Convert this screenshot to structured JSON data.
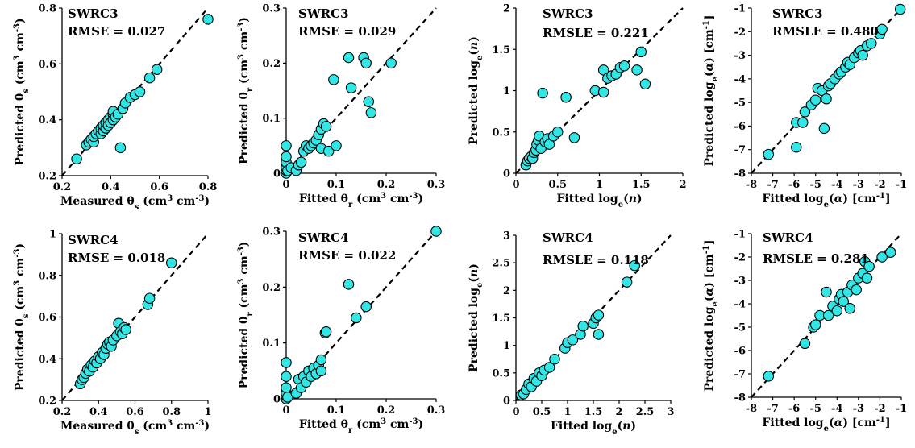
{
  "chart_data": [
    {
      "type": "scatter",
      "title": "SWRC3",
      "annotation": "RMSE = 0.027",
      "xlabel_html": "Measured θ<tspan baseline-shift='sub' font-size='10'>s</tspan> (cm<tspan baseline-shift='super' font-size='10'>3</tspan> cm<tspan baseline-shift='super' font-size='10'>-3</tspan>)",
      "ylabel_html": "Predicted θ<tspan baseline-shift='sub' font-size='10'>s</tspan> (cm<tspan baseline-shift='super' font-size='10'>3</tspan> cm<tspan baseline-shift='super' font-size='10'>-3</tspan>)",
      "xlim": [
        0.2,
        0.8
      ],
      "ylim": [
        0.2,
        0.8
      ],
      "xticks": [
        0.2,
        0.4,
        0.6,
        0.8
      ],
      "yticks": [
        0.2,
        0.4,
        0.6,
        0.8
      ],
      "tick_labels_x": [
        "0.2",
        "0.4",
        "0.6",
        "0.8"
      ],
      "tick_labels_y": [
        "0.2",
        "0.4",
        "0.6",
        "0.8"
      ],
      "reference_line": "1:1 dashed",
      "points": [
        [
          0.26,
          0.26
        ],
        [
          0.3,
          0.31
        ],
        [
          0.31,
          0.32
        ],
        [
          0.32,
          0.33
        ],
        [
          0.33,
          0.32
        ],
        [
          0.33,
          0.34
        ],
        [
          0.34,
          0.35
        ],
        [
          0.35,
          0.36
        ],
        [
          0.36,
          0.35
        ],
        [
          0.36,
          0.37
        ],
        [
          0.37,
          0.36
        ],
        [
          0.37,
          0.38
        ],
        [
          0.38,
          0.37
        ],
        [
          0.38,
          0.39
        ],
        [
          0.39,
          0.4
        ],
        [
          0.39,
          0.38
        ],
        [
          0.4,
          0.41
        ],
        [
          0.4,
          0.39
        ],
        [
          0.41,
          0.42
        ],
        [
          0.41,
          0.4
        ],
        [
          0.41,
          0.43
        ],
        [
          0.42,
          0.41
        ],
        [
          0.43,
          0.42
        ],
        [
          0.44,
          0.3
        ],
        [
          0.45,
          0.44
        ],
        [
          0.46,
          0.46
        ],
        [
          0.48,
          0.48
        ],
        [
          0.5,
          0.49
        ],
        [
          0.52,
          0.5
        ],
        [
          0.56,
          0.55
        ],
        [
          0.59,
          0.58
        ],
        [
          0.8,
          0.76
        ]
      ]
    },
    {
      "type": "scatter",
      "title": "SWRC3",
      "annotation": "RMSE = 0.029",
      "xlabel_html": "Fitted θ<tspan baseline-shift='sub' font-size='10'>r</tspan> (cm<tspan baseline-shift='super' font-size='10'>3</tspan> cm<tspan baseline-shift='super' font-size='10'>-3</tspan>)",
      "ylabel_html": "Predicted θ<tspan baseline-shift='sub' font-size='10'>r</tspan> (cm<tspan baseline-shift='super' font-size='10'>3</tspan> cm<tspan baseline-shift='super' font-size='10'>-3</tspan>)",
      "xlim": [
        0,
        0.3
      ],
      "ylim": [
        0,
        0.3
      ],
      "xticks": [
        0,
        0.1,
        0.2,
        0.3
      ],
      "yticks": [
        0,
        0.1,
        0.2,
        0.3
      ],
      "tick_labels_x": [
        "0",
        "0.1",
        "0.2",
        "0.3"
      ],
      "tick_labels_y": [
        "0",
        "0.1",
        "0.2",
        "0.3"
      ],
      "reference_line": "1:1 dashed",
      "points": [
        [
          0,
          0
        ],
        [
          0,
          0.005
        ],
        [
          0,
          0.01
        ],
        [
          0,
          0.02
        ],
        [
          0,
          0.03
        ],
        [
          0,
          0.05
        ],
        [
          0.003,
          0.005
        ],
        [
          0.01,
          0.01
        ],
        [
          0.02,
          0.005
        ],
        [
          0.025,
          0.015
        ],
        [
          0.03,
          0.02
        ],
        [
          0.035,
          0.04
        ],
        [
          0.04,
          0.05
        ],
        [
          0.045,
          0.045
        ],
        [
          0.05,
          0.05
        ],
        [
          0.055,
          0.055
        ],
        [
          0.06,
          0.06
        ],
        [
          0.065,
          0.07
        ],
        [
          0.07,
          0.045
        ],
        [
          0.07,
          0.08
        ],
        [
          0.075,
          0.09
        ],
        [
          0.08,
          0.085
        ],
        [
          0.085,
          0.04
        ],
        [
          0.095,
          0.17
        ],
        [
          0.1,
          0.05
        ],
        [
          0.125,
          0.21
        ],
        [
          0.13,
          0.155
        ],
        [
          0.155,
          0.21
        ],
        [
          0.16,
          0.2
        ],
        [
          0.165,
          0.13
        ],
        [
          0.17,
          0.11
        ],
        [
          0.21,
          0.2
        ]
      ]
    },
    {
      "type": "scatter",
      "title": "SWRC3",
      "annotation": "RMSLE = 0.221",
      "xlabel_html": "Fitted log<tspan baseline-shift='sub' font-size='10'>e</tspan>(<tspan font-style='italic'>n</tspan>)",
      "ylabel_html": "Predicted log<tspan baseline-shift='sub' font-size='10'>e</tspan>(<tspan font-style='italic'>n</tspan>)",
      "xlim": [
        0,
        2
      ],
      "ylim": [
        0,
        2
      ],
      "xticks": [
        0,
        0.5,
        1,
        1.5,
        2
      ],
      "yticks": [
        0,
        0.5,
        1,
        1.5,
        2
      ],
      "tick_labels_x": [
        "0",
        "0.5",
        "1",
        "1.5",
        "2"
      ],
      "tick_labels_y": [
        "0",
        "0.5",
        "1",
        "1.5",
        "2"
      ],
      "reference_line": "1:1 dashed",
      "points": [
        [
          0.12,
          0.1
        ],
        [
          0.14,
          0.15
        ],
        [
          0.16,
          0.18
        ],
        [
          0.18,
          0.2
        ],
        [
          0.2,
          0.18
        ],
        [
          0.22,
          0.25
        ],
        [
          0.24,
          0.28
        ],
        [
          0.25,
          0.35
        ],
        [
          0.27,
          0.4
        ],
        [
          0.28,
          0.45
        ],
        [
          0.3,
          0.3
        ],
        [
          0.32,
          0.97
        ],
        [
          0.35,
          0.38
        ],
        [
          0.38,
          0.42
        ],
        [
          0.4,
          0.35
        ],
        [
          0.45,
          0.45
        ],
        [
          0.5,
          0.5
        ],
        [
          0.6,
          0.92
        ],
        [
          0.7,
          0.43
        ],
        [
          0.95,
          1.0
        ],
        [
          1.05,
          0.98
        ],
        [
          1.05,
          1.25
        ],
        [
          1.1,
          1.15
        ],
        [
          1.15,
          1.18
        ],
        [
          1.2,
          1.2
        ],
        [
          1.25,
          1.28
        ],
        [
          1.3,
          1.3
        ],
        [
          1.45,
          1.25
        ],
        [
          1.5,
          1.47
        ],
        [
          1.55,
          1.08
        ]
      ]
    },
    {
      "type": "scatter",
      "title": "SWRC3",
      "annotation": "RMSLE = 0.480",
      "xlabel_html": "Fitted log<tspan baseline-shift='sub' font-size='10'>e</tspan>(<tspan font-style='italic'>α</tspan>) [cm<tspan baseline-shift='super' font-size='10'>-1</tspan>]",
      "ylabel_html": "Predicted log<tspan baseline-shift='sub' font-size='10'>e</tspan>(<tspan font-style='italic'>α</tspan>) [cm<tspan baseline-shift='super' font-size='10'>-1</tspan>]",
      "xlim": [
        -8,
        -1
      ],
      "ylim": [
        -8,
        -1
      ],
      "xticks": [
        -8,
        -7,
        -6,
        -5,
        -4,
        -3,
        -2,
        -1
      ],
      "yticks": [
        -8,
        -7,
        -6,
        -5,
        -4,
        -3,
        -2,
        -1
      ],
      "tick_labels_x": [
        "-8",
        "-7",
        "-6",
        "-5",
        "-4",
        "-3",
        "-2",
        "-1"
      ],
      "tick_labels_y": [
        "-8",
        "-7",
        "-6",
        "-5",
        "-4",
        "-3",
        "-2",
        "-1"
      ],
      "reference_line": "1:1 dashed",
      "points": [
        [
          -7.2,
          -7.2
        ],
        [
          -5.9,
          -6.9
        ],
        [
          -5.9,
          -5.85
        ],
        [
          -5.6,
          -5.85
        ],
        [
          -5.5,
          -5.4
        ],
        [
          -5.2,
          -5.1
        ],
        [
          -5.0,
          -4.9
        ],
        [
          -4.9,
          -4.4
        ],
        [
          -4.7,
          -4.5
        ],
        [
          -4.6,
          -6.1
        ],
        [
          -4.5,
          -4.85
        ],
        [
          -4.4,
          -4.3
        ],
        [
          -4.3,
          -4.2
        ],
        [
          -4.1,
          -4.0
        ],
        [
          -3.9,
          -3.8
        ],
        [
          -3.8,
          -3.7
        ],
        [
          -3.6,
          -3.5
        ],
        [
          -3.5,
          -3.3
        ],
        [
          -3.4,
          -3.4
        ],
        [
          -3.2,
          -3.1
        ],
        [
          -3.0,
          -2.9
        ],
        [
          -2.9,
          -2.8
        ],
        [
          -2.8,
          -3.0
        ],
        [
          -2.6,
          -2.6
        ],
        [
          -2.4,
          -2.5
        ],
        [
          -2.0,
          -2.1
        ],
        [
          -1.9,
          -1.9
        ],
        [
          -1.05,
          -1.05
        ]
      ]
    },
    {
      "type": "scatter",
      "title": "SWRC4",
      "annotation": "RMSE = 0.018",
      "xlabel_html": "Measured θ<tspan baseline-shift='sub' font-size='10'>s</tspan> (cm<tspan baseline-shift='super' font-size='10'>3</tspan> cm<tspan baseline-shift='super' font-size='10'>-3</tspan>)",
      "ylabel_html": "Predicted θ<tspan baseline-shift='sub' font-size='10'>s</tspan> (cm<tspan baseline-shift='super' font-size='10'>3</tspan> cm<tspan baseline-shift='super' font-size='10'>-3</tspan>)",
      "xlim": [
        0.2,
        1
      ],
      "ylim": [
        0.2,
        1
      ],
      "xticks": [
        0.2,
        0.4,
        0.6,
        0.8,
        1
      ],
      "yticks": [
        0.2,
        0.4,
        0.6,
        0.8,
        1
      ],
      "tick_labels_x": [
        "0.2",
        "0.4",
        "0.6",
        "0.8",
        "1"
      ],
      "tick_labels_y": [
        "0.2",
        "0.4",
        "0.6",
        "0.8",
        "1"
      ],
      "reference_line": "1:1 dashed",
      "points": [
        [
          0.3,
          0.28
        ],
        [
          0.31,
          0.3
        ],
        [
          0.32,
          0.31
        ],
        [
          0.33,
          0.33
        ],
        [
          0.34,
          0.35
        ],
        [
          0.35,
          0.34
        ],
        [
          0.36,
          0.37
        ],
        [
          0.37,
          0.36
        ],
        [
          0.38,
          0.39
        ],
        [
          0.39,
          0.38
        ],
        [
          0.4,
          0.41
        ],
        [
          0.41,
          0.4
        ],
        [
          0.42,
          0.43
        ],
        [
          0.43,
          0.42
        ],
        [
          0.44,
          0.45
        ],
        [
          0.45,
          0.47
        ],
        [
          0.46,
          0.48
        ],
        [
          0.47,
          0.46
        ],
        [
          0.48,
          0.49
        ],
        [
          0.5,
          0.51
        ],
        [
          0.51,
          0.57
        ],
        [
          0.52,
          0.53
        ],
        [
          0.53,
          0.52
        ],
        [
          0.54,
          0.55
        ],
        [
          0.55,
          0.54
        ],
        [
          0.67,
          0.66
        ],
        [
          0.68,
          0.69
        ],
        [
          0.8,
          0.86
        ]
      ]
    },
    {
      "type": "scatter",
      "title": "SWRC4",
      "annotation": "RMSE = 0.022",
      "xlabel_html": "Fitted θ<tspan baseline-shift='sub' font-size='10'>r</tspan> (cm<tspan baseline-shift='super' font-size='10'>3</tspan> cm<tspan baseline-shift='super' font-size='10'>-3</tspan>)",
      "ylabel_html": "Predicted θ<tspan baseline-shift='sub' font-size='10'>r</tspan> (cm<tspan baseline-shift='super' font-size='10'>3</tspan> cm<tspan baseline-shift='super' font-size='10'>-3</tspan>)",
      "xlim": [
        0,
        0.3
      ],
      "ylim": [
        0,
        0.3
      ],
      "xticks": [
        0,
        0.1,
        0.2,
        0.3
      ],
      "yticks": [
        0,
        0.1,
        0.2,
        0.3
      ],
      "tick_labels_x": [
        "0",
        "0.1",
        "0.2",
        "0.3"
      ],
      "tick_labels_y": [
        "0",
        "0.1",
        "0.2",
        "0.3"
      ],
      "reference_line": "1:1 dashed",
      "points": [
        [
          0,
          0
        ],
        [
          0,
          0.005
        ],
        [
          0,
          0.01
        ],
        [
          0,
          0.02
        ],
        [
          0,
          0.04
        ],
        [
          0,
          0.065
        ],
        [
          0.003,
          0.003
        ],
        [
          0.02,
          0.01
        ],
        [
          0.025,
          0.035
        ],
        [
          0.03,
          0.02
        ],
        [
          0.035,
          0.04
        ],
        [
          0.04,
          0.03
        ],
        [
          0.045,
          0.05
        ],
        [
          0.05,
          0.04
        ],
        [
          0.055,
          0.055
        ],
        [
          0.06,
          0.045
        ],
        [
          0.065,
          0.06
        ],
        [
          0.07,
          0.07
        ],
        [
          0.07,
          0.05
        ],
        [
          0.078,
          0.118
        ],
        [
          0.08,
          0.12
        ],
        [
          0.125,
          0.205
        ],
        [
          0.14,
          0.145
        ],
        [
          0.16,
          0.165
        ],
        [
          0.3,
          0.3
        ]
      ]
    },
    {
      "type": "scatter",
      "title": "SWRC4",
      "annotation": "RMSLE = 0.118",
      "xlabel_html": "Fitted log<tspan baseline-shift='sub' font-size='10'>e</tspan>(<tspan font-style='italic'>n</tspan>)",
      "ylabel_html": "Predicted log<tspan baseline-shift='sub' font-size='10'>e</tspan>(<tspan font-style='italic'>n</tspan>)",
      "xlim": [
        0,
        3
      ],
      "ylim": [
        0,
        3
      ],
      "xticks": [
        0,
        0.5,
        1,
        1.5,
        2,
        2.5,
        3
      ],
      "yticks": [
        0,
        0.5,
        1,
        1.5,
        2,
        2.5,
        3
      ],
      "tick_labels_x": [
        "0",
        "0.5",
        "1",
        "1.5",
        "2",
        "2.5",
        "3"
      ],
      "tick_labels_y": [
        "0",
        "0.5",
        "1",
        "1.5",
        "2",
        "2.5",
        "3"
      ],
      "reference_line": "1:1 dashed",
      "points": [
        [
          0.1,
          0.1
        ],
        [
          0.15,
          0.12
        ],
        [
          0.2,
          0.2
        ],
        [
          0.25,
          0.3
        ],
        [
          0.3,
          0.25
        ],
        [
          0.35,
          0.4
        ],
        [
          0.4,
          0.35
        ],
        [
          0.45,
          0.5
        ],
        [
          0.5,
          0.45
        ],
        [
          0.55,
          0.55
        ],
        [
          0.65,
          0.6
        ],
        [
          0.75,
          0.75
        ],
        [
          0.95,
          0.95
        ],
        [
          1.0,
          1.05
        ],
        [
          1.1,
          1.1
        ],
        [
          1.25,
          1.2
        ],
        [
          1.3,
          1.35
        ],
        [
          1.5,
          1.4
        ],
        [
          1.55,
          1.5
        ],
        [
          1.6,
          1.55
        ],
        [
          1.6,
          1.2
        ],
        [
          2.15,
          2.15
        ],
        [
          2.3,
          2.45
        ]
      ]
    },
    {
      "type": "scatter",
      "title": "SWRC4",
      "annotation": "RMSLE = 0.281",
      "xlabel_html": "Fitted log<tspan baseline-shift='sub' font-size='10'>e</tspan>(<tspan font-style='italic'>α</tspan>) [cm<tspan baseline-shift='super' font-size='10'>-1</tspan>]",
      "ylabel_html": "Predicted log<tspan baseline-shift='sub' font-size='10'>e</tspan>(<tspan font-style='italic'>α</tspan>) [cm<tspan baseline-shift='super' font-size='10'>-1</tspan>]",
      "xlim": [
        -8,
        -1
      ],
      "ylim": [
        -8,
        -1
      ],
      "xticks": [
        -8,
        -7,
        -6,
        -5,
        -4,
        -3,
        -2,
        -1
      ],
      "yticks": [
        -8,
        -7,
        -6,
        -5,
        -4,
        -3,
        -2,
        -1
      ],
      "tick_labels_x": [
        "-8",
        "-7",
        "-6",
        "-5",
        "-4",
        "-3",
        "-2",
        "-1"
      ],
      "tick_labels_y": [
        "-8",
        "-7",
        "-6",
        "-5",
        "-4",
        "-3",
        "-2",
        "-1"
      ],
      "reference_line": "1:1 dashed",
      "points": [
        [
          -7.2,
          -7.1
        ],
        [
          -5.5,
          -5.7
        ],
        [
          -5.1,
          -5.0
        ],
        [
          -5.0,
          -4.9
        ],
        [
          -4.8,
          -4.5
        ],
        [
          -4.5,
          -3.5
        ],
        [
          -4.4,
          -4.5
        ],
        [
          -4.2,
          -4.1
        ],
        [
          -4.0,
          -4.3
        ],
        [
          -3.9,
          -3.8
        ],
        [
          -3.8,
          -3.6
        ],
        [
          -3.7,
          -3.9
        ],
        [
          -3.5,
          -3.5
        ],
        [
          -3.4,
          -4.2
        ],
        [
          -3.3,
          -3.2
        ],
        [
          -3.1,
          -3.4
        ],
        [
          -3.0,
          -2.9
        ],
        [
          -2.8,
          -2.7
        ],
        [
          -2.7,
          -2.2
        ],
        [
          -2.6,
          -2.9
        ],
        [
          -2.5,
          -2.4
        ],
        [
          -1.9,
          -2.0
        ],
        [
          -1.5,
          -1.8
        ]
      ]
    }
  ]
}
